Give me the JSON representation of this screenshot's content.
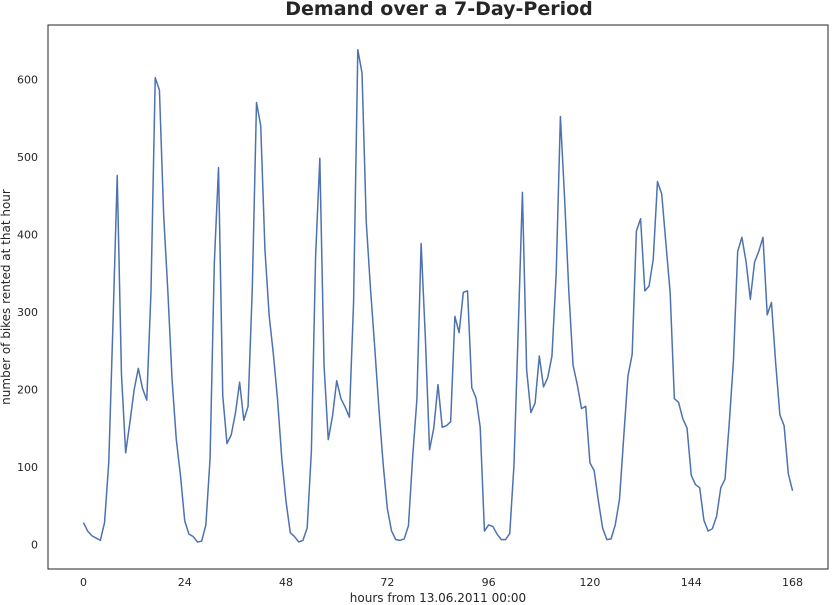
{
  "chart_data": {
    "type": "line",
    "title": "Demand over a 7-Day-Period",
    "xlabel": "hours from 13.06.2011 00:00",
    "ylabel": "number of bikes rented at that hour",
    "xlim": [
      -8.4,
      176.4
    ],
    "ylim": [
      -31.9,
      670
    ],
    "xticks": [
      0,
      24,
      48,
      72,
      96,
      120,
      144,
      168
    ],
    "yticks": [
      0,
      100,
      200,
      300,
      400,
      500,
      600
    ],
    "grid": false,
    "line_color": "#4c72b0",
    "series": [
      {
        "x": [
          0,
          1,
          2,
          3,
          4,
          5,
          6,
          7,
          8,
          9,
          10,
          11,
          12,
          13,
          14,
          15,
          16,
          17,
          18,
          19,
          20,
          21,
          22,
          23,
          24,
          25,
          26,
          27,
          28,
          29,
          30,
          31,
          32,
          33,
          34,
          35,
          36,
          37,
          38,
          39,
          40,
          41,
          42,
          43,
          44,
          45,
          46,
          47,
          48,
          49,
          50,
          51,
          52,
          53,
          54,
          55,
          56,
          57,
          58,
          59,
          60,
          61,
          62,
          63,
          64,
          65,
          66,
          67,
          68,
          69,
          70,
          71,
          72,
          73,
          74,
          75,
          76,
          77,
          78,
          79,
          80,
          81,
          82,
          83,
          84,
          85,
          86,
          87,
          88,
          89,
          90,
          91,
          92,
          93,
          94,
          95,
          96,
          97,
          98,
          99,
          100,
          101,
          102,
          103,
          104,
          105,
          106,
          107,
          108,
          109,
          110,
          111,
          112,
          113,
          114,
          115,
          116,
          117,
          118,
          119,
          120,
          121,
          122,
          123,
          124,
          125,
          126,
          127,
          128,
          129,
          130,
          131,
          132,
          133,
          134,
          135,
          136,
          137,
          138,
          139,
          140,
          141,
          142,
          143,
          144,
          145,
          146,
          147,
          148,
          149,
          150,
          151,
          152,
          153,
          154,
          155,
          156,
          157,
          158,
          159,
          160,
          161,
          162,
          163,
          164,
          165,
          166,
          167,
          168
        ],
        "values": [
          28,
          17,
          11,
          8,
          5,
          28,
          106,
          286,
          476,
          220,
          118,
          157,
          199,
          227,
          201,
          186,
          326,
          602,
          586,
          425,
          326,
          212,
          135,
          88,
          30,
          13,
          10,
          3,
          4,
          25,
          111,
          362,
          486,
          192,
          130,
          141,
          169,
          209,
          160,
          178,
          330,
          570,
          540,
          380,
          295,
          245,
          186,
          110,
          55,
          15,
          10,
          3,
          5,
          21,
          120,
          371,
          498,
          231,
          135,
          165,
          211,
          188,
          177,
          164,
          312,
          638,
          608,
          416,
          330,
          255,
          175,
          104,
          46,
          17,
          6,
          5,
          7,
          24,
          113,
          187,
          388,
          267,
          122,
          150,
          206,
          151,
          153,
          158,
          294,
          273,
          325,
          327,
          202,
          189,
          151,
          17,
          25,
          23,
          13,
          6,
          6,
          14,
          102,
          275,
          454,
          225,
          170,
          182,
          243,
          203,
          215,
          243,
          349,
          552,
          446,
          326,
          231,
          206,
          175,
          178,
          105,
          95,
          56,
          21,
          6,
          7,
          25,
          58,
          138,
          217,
          245,
          404,
          420,
          327,
          333,
          368,
          468,
          452,
          388,
          325,
          188,
          183,
          162,
          150,
          89,
          77,
          73,
          31,
          17,
          20,
          36,
          73,
          84,
          156,
          237,
          378,
          396,
          364,
          316,
          364,
          378,
          396,
          296,
          312,
          234,
          167,
          153,
          91,
          69
        ]
      }
    ]
  }
}
